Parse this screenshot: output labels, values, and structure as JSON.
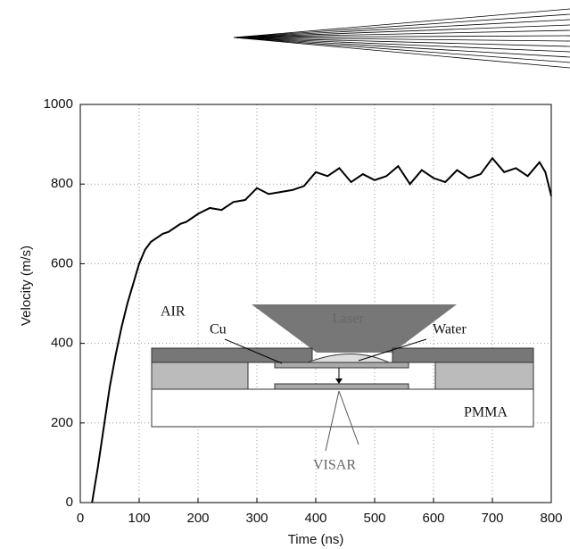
{
  "chart_data": {
    "type": "line",
    "x_label": "Time (ns)",
    "y_label": "Velocity (m/s)",
    "x": [
      20,
      30,
      40,
      50,
      60,
      70,
      80,
      90,
      100,
      110,
      120,
      130,
      140,
      150,
      160,
      170,
      180,
      190,
      200,
      220,
      240,
      260,
      280,
      300,
      320,
      340,
      360,
      380,
      400,
      420,
      440,
      460,
      480,
      500,
      520,
      540,
      560,
      580,
      600,
      620,
      640,
      660,
      680,
      700,
      720,
      740,
      760,
      780,
      790,
      800
    ],
    "series": [
      {
        "color": "#000000",
        "values": [
          0,
          90,
          190,
          290,
          370,
          440,
          500,
          550,
          600,
          635,
          655,
          665,
          675,
          680,
          690,
          700,
          705,
          715,
          725,
          740,
          735,
          755,
          760,
          790,
          775,
          780,
          785,
          795,
          830,
          820,
          840,
          805,
          825,
          810,
          820,
          845,
          800,
          835,
          815,
          805,
          835,
          815,
          825,
          865,
          830,
          840,
          820,
          855,
          830,
          770
        ]
      }
    ],
    "xlim": [
      0,
      800
    ],
    "ylim": [
      0,
      1000
    ],
    "xticks": [
      0,
      100,
      200,
      300,
      400,
      500,
      600,
      700,
      800
    ],
    "yticks": [
      0,
      200,
      400,
      600,
      800,
      1000
    ],
    "grid": true,
    "annotations": [
      "AIR",
      "Cu",
      "Laser",
      "Water",
      "PMMA",
      "VISAR"
    ]
  }
}
